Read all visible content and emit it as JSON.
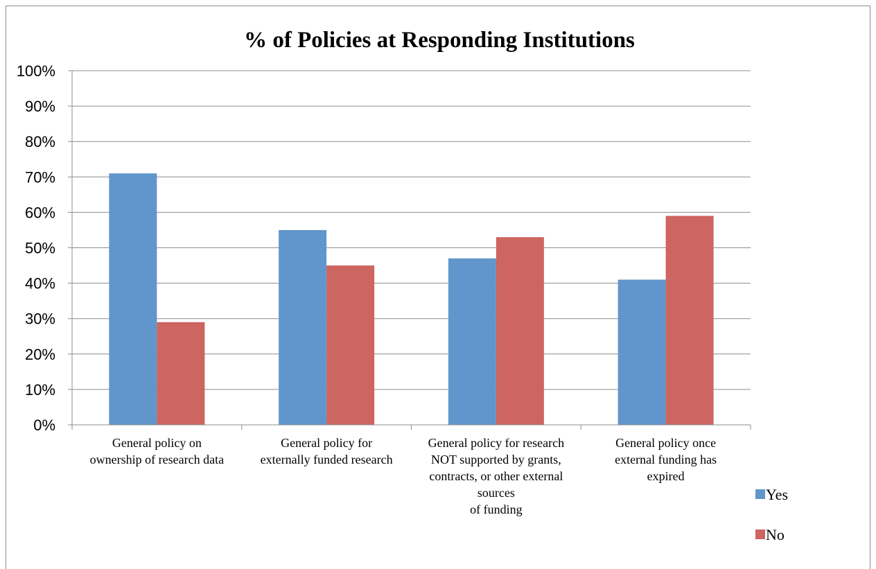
{
  "chart_data": {
    "type": "bar",
    "title": "% of Policies at Responding Institutions",
    "xlabel": "",
    "ylabel": "",
    "ylim": [
      0,
      100
    ],
    "yticks": [
      0,
      10,
      20,
      30,
      40,
      50,
      60,
      70,
      80,
      90,
      100
    ],
    "y_tick_labels": [
      "0%",
      "10%",
      "20%",
      "30%",
      "40%",
      "50%",
      "60%",
      "70%",
      "80%",
      "90%",
      "100%"
    ],
    "grid": true,
    "legend_placement": "right",
    "categories": [
      [
        "General policy on",
        "ownership of research data"
      ],
      [
        "General policy for",
        "externally funded research"
      ],
      [
        "General policy for research",
        "NOT supported by grants,",
        "contracts, or other external",
        "sources",
        "of funding"
      ],
      [
        "General policy once",
        "external funding has",
        "expired"
      ]
    ],
    "series": [
      {
        "name": "Yes",
        "color": "#6096cb",
        "values": [
          71,
          55,
          47,
          41
        ]
      },
      {
        "name": "No",
        "color": "#cd6560",
        "values": [
          29,
          45,
          53,
          59
        ]
      }
    ]
  }
}
